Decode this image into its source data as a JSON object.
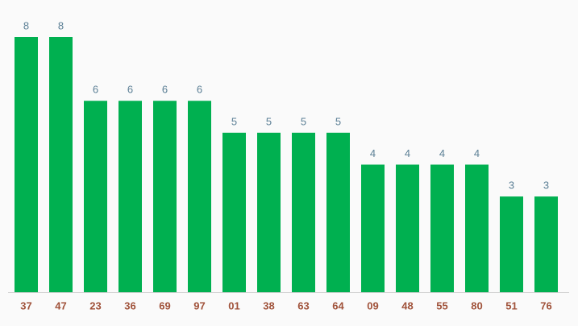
{
  "chart_data": {
    "type": "bar",
    "categories": [
      "37",
      "47",
      "23",
      "36",
      "69",
      "97",
      "01",
      "38",
      "63",
      "64",
      "09",
      "48",
      "55",
      "80",
      "51",
      "76"
    ],
    "values": [
      8,
      8,
      6,
      6,
      6,
      6,
      5,
      5,
      5,
      5,
      4,
      4,
      4,
      4,
      3,
      3
    ],
    "color": "#00b050"
  }
}
